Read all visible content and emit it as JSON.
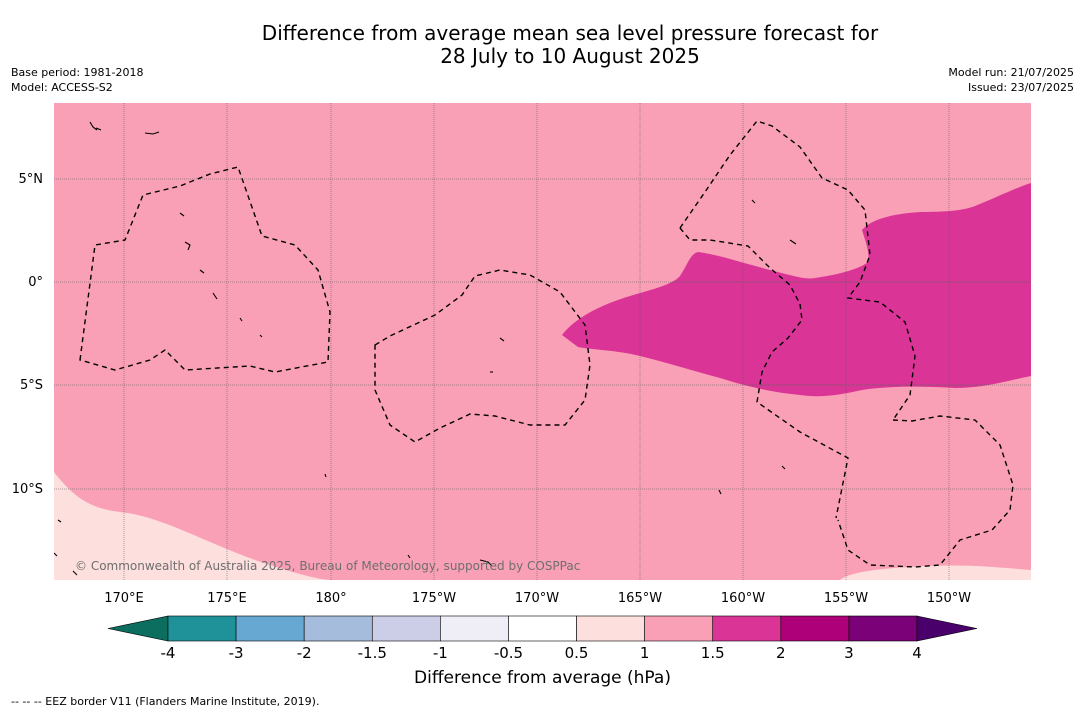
{
  "title": {
    "line1": "Difference from average mean sea level pressure forecast for",
    "line2": "28 July to 10 August 2025"
  },
  "meta_left": {
    "base_period": "Base period: 1981-2018",
    "model": "Model: ACCESS-S2"
  },
  "meta_right": {
    "model_run": "Model run: 21/07/2025",
    "issued": "Issued: 23/07/2025"
  },
  "map": {
    "lat_labels": [
      "5°N",
      "0°",
      "5°S",
      "10°S"
    ],
    "lon_labels": [
      "170°E",
      "175°E",
      "180°",
      "175°W",
      "170°W",
      "165°W",
      "160°W",
      "155°W",
      "150°W"
    ],
    "copyright": "© Commonwealth of Australia 2025, Bureau of Meteorology, supported by COSPPac",
    "colors": {
      "band_1_1_5": "#f9a0b6",
      "band_0_5_1": "#fddfde",
      "band_1_5_2": "#db3497",
      "eez_line": "#000000",
      "gridline": "#555555"
    }
  },
  "colorbar": {
    "tick_labels": [
      "-4",
      "-3",
      "-2",
      "-1.5",
      "-1",
      "-0.5",
      "0.5",
      "1",
      "1.5",
      "2",
      "3",
      "4"
    ],
    "colors": [
      "#0b6e5f",
      "#1f9199",
      "#66a8d1",
      "#a6bcdc",
      "#cccde7",
      "#efedf5",
      "#ffffff",
      "#fddfde",
      "#f9a0b6",
      "#db3497",
      "#ae0179",
      "#7a0177",
      "#49006a"
    ],
    "label": "Difference from average (hPa)"
  },
  "footnote": "--  --  -- EEZ border V11 (Flanders Marine Institute, 2019)."
}
